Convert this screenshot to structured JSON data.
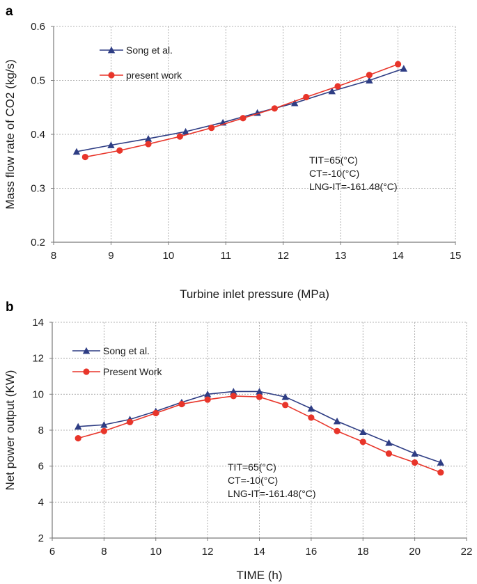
{
  "chart_data": [
    {
      "panel_label": "a",
      "type": "line",
      "title": "",
      "xlabel": "Turbine inlet pressure (MPa)",
      "ylabel": "Mass flow rate of CO2 (kg/s)",
      "xlim": [
        8,
        15
      ],
      "ylim": [
        0.2,
        0.6
      ],
      "xticks": [
        8,
        9,
        10,
        11,
        12,
        13,
        14,
        15
      ],
      "yticks": [
        0.2,
        0.3,
        0.4,
        0.5,
        0.6
      ],
      "xtick_labels": [
        "8",
        "9",
        "10",
        "11",
        "12",
        "13",
        "14",
        "15"
      ],
      "ytick_labels": [
        "0.2",
        "0.3",
        "0.4",
        "0.5",
        "0.6"
      ],
      "grid": true,
      "legend_position": "top-left",
      "series": [
        {
          "name": "Song et al.",
          "color": "#2e3d84",
          "marker": "triangle",
          "x": [
            8.4,
            9.0,
            9.65,
            10.3,
            10.95,
            11.55,
            12.2,
            12.85,
            13.5,
            14.1
          ],
          "y": [
            0.368,
            0.38,
            0.392,
            0.405,
            0.422,
            0.44,
            0.458,
            0.48,
            0.5,
            0.522
          ]
        },
        {
          "name": "present work",
          "color": "#e8352a",
          "marker": "circle",
          "x": [
            8.55,
            9.15,
            9.65,
            10.2,
            10.75,
            11.3,
            11.85,
            12.4,
            12.95,
            13.5,
            14.0
          ],
          "y": [
            0.358,
            0.37,
            0.382,
            0.396,
            0.412,
            0.43,
            0.448,
            0.469,
            0.489,
            0.51,
            0.53
          ]
        }
      ],
      "annotations": [
        "TIT=65(°C)",
        "CT=-10(°C)",
        "LNG-IT=-161.48(°C)"
      ]
    },
    {
      "panel_label": "b",
      "type": "line",
      "title": "",
      "xlabel": "TIME (h)",
      "ylabel": "Net power output (KW)",
      "xlim": [
        6,
        22
      ],
      "ylim": [
        2,
        14
      ],
      "xticks": [
        6,
        8,
        10,
        12,
        14,
        16,
        18,
        20,
        22
      ],
      "yticks": [
        2,
        4,
        6,
        8,
        10,
        12,
        14
      ],
      "xtick_labels": [
        "6",
        "8",
        "10",
        "12",
        "14",
        "16",
        "18",
        "20",
        "22"
      ],
      "ytick_labels": [
        "2",
        "4",
        "6",
        "8",
        "10",
        "12",
        "14"
      ],
      "grid": true,
      "legend_position": "top-left",
      "series": [
        {
          "name": "Song et al.",
          "color": "#2e3d84",
          "marker": "triangle",
          "x": [
            7,
            8,
            9,
            10,
            11,
            12,
            13,
            14,
            15,
            16,
            17,
            18,
            19,
            20,
            21
          ],
          "y": [
            8.2,
            8.3,
            8.6,
            9.05,
            9.55,
            10.0,
            10.15,
            10.15,
            9.85,
            9.2,
            8.5,
            7.9,
            7.3,
            6.7,
            6.2
          ]
        },
        {
          "name": "Present Work",
          "color": "#e8352a",
          "marker": "circle",
          "x": [
            7,
            8,
            9,
            10,
            11,
            12,
            13,
            14,
            15,
            16,
            17,
            18,
            19,
            20,
            21
          ],
          "y": [
            7.55,
            7.95,
            8.45,
            8.95,
            9.45,
            9.7,
            9.9,
            9.85,
            9.4,
            8.7,
            7.95,
            7.35,
            6.7,
            6.2,
            5.65
          ]
        }
      ],
      "annotations": [
        "TIT=65(°C)",
        "CT=-10(°C)",
        "LNG-IT=-161.48(°C)"
      ]
    }
  ]
}
